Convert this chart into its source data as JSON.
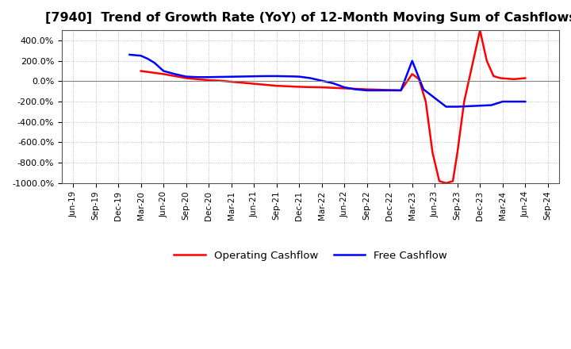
{
  "title": "[7940]  Trend of Growth Rate (YoY) of 12-Month Moving Sum of Cashflows",
  "title_fontsize": 11.5,
  "background_color": "#ffffff",
  "plot_bg_color": "#ffffff",
  "grid_color": "#999999",
  "ylim": [
    -1000,
    500
  ],
  "yticks": [
    -1000,
    -800,
    -600,
    -400,
    -200,
    0,
    200,
    400
  ],
  "legend_items": [
    "Operating Cashflow",
    "Free Cashflow"
  ],
  "legend_colors": [
    "#ff0000",
    "#0000ff"
  ],
  "x_labels": [
    "Jun-19",
    "Sep-19",
    "Dec-19",
    "Mar-20",
    "Jun-20",
    "Sep-20",
    "Dec-20",
    "Mar-21",
    "Jun-21",
    "Sep-21",
    "Dec-21",
    "Mar-22",
    "Jun-22",
    "Sep-22",
    "Dec-22",
    "Mar-23",
    "Jun-23",
    "Sep-23",
    "Dec-23",
    "Mar-24",
    "Jun-24",
    "Sep-24"
  ],
  "oc_x": [
    3,
    3.5,
    4,
    4.5,
    5,
    5.5,
    6,
    6.5,
    7,
    7.5,
    8,
    8.5,
    9,
    9.5,
    10,
    10.5,
    11,
    11.5,
    12,
    12.5,
    13,
    13.5,
    14,
    14.5,
    15,
    15.3,
    15.6,
    15.9,
    16.2,
    16.5,
    16.8,
    17.0,
    17.3,
    17.6,
    18.0,
    18.3,
    18.6,
    18.9,
    19.2,
    19.5,
    20
  ],
  "oc_y": [
    100,
    85,
    70,
    50,
    30,
    20,
    10,
    5,
    -5,
    -15,
    -25,
    -35,
    -45,
    -50,
    -55,
    -58,
    -60,
    -65,
    -70,
    -75,
    -80,
    -83,
    -87,
    -90,
    70,
    20,
    -200,
    -700,
    -980,
    -1000,
    -980,
    -700,
    -200,
    100,
    500,
    200,
    50,
    30,
    25,
    20,
    30
  ],
  "fc_x": [
    2.5,
    3,
    3.3,
    3.6,
    4,
    4.5,
    5,
    5.5,
    6,
    6.5,
    7,
    7.5,
    8,
    8.5,
    9,
    9.5,
    10,
    10.5,
    11,
    11.5,
    12,
    12.5,
    13,
    13.5,
    14,
    14.5,
    15,
    15.5,
    16,
    16.5,
    17,
    17.5,
    18,
    18.5,
    19,
    19.5,
    20
  ],
  "fc_y": [
    260,
    250,
    220,
    180,
    100,
    70,
    45,
    40,
    40,
    42,
    44,
    46,
    48,
    50,
    50,
    48,
    45,
    30,
    5,
    -20,
    -60,
    -80,
    -90,
    -90,
    -90,
    -90,
    200,
    -80,
    -165,
    -250,
    -250,
    -245,
    -240,
    -235,
    -200,
    -200,
    -200
  ]
}
